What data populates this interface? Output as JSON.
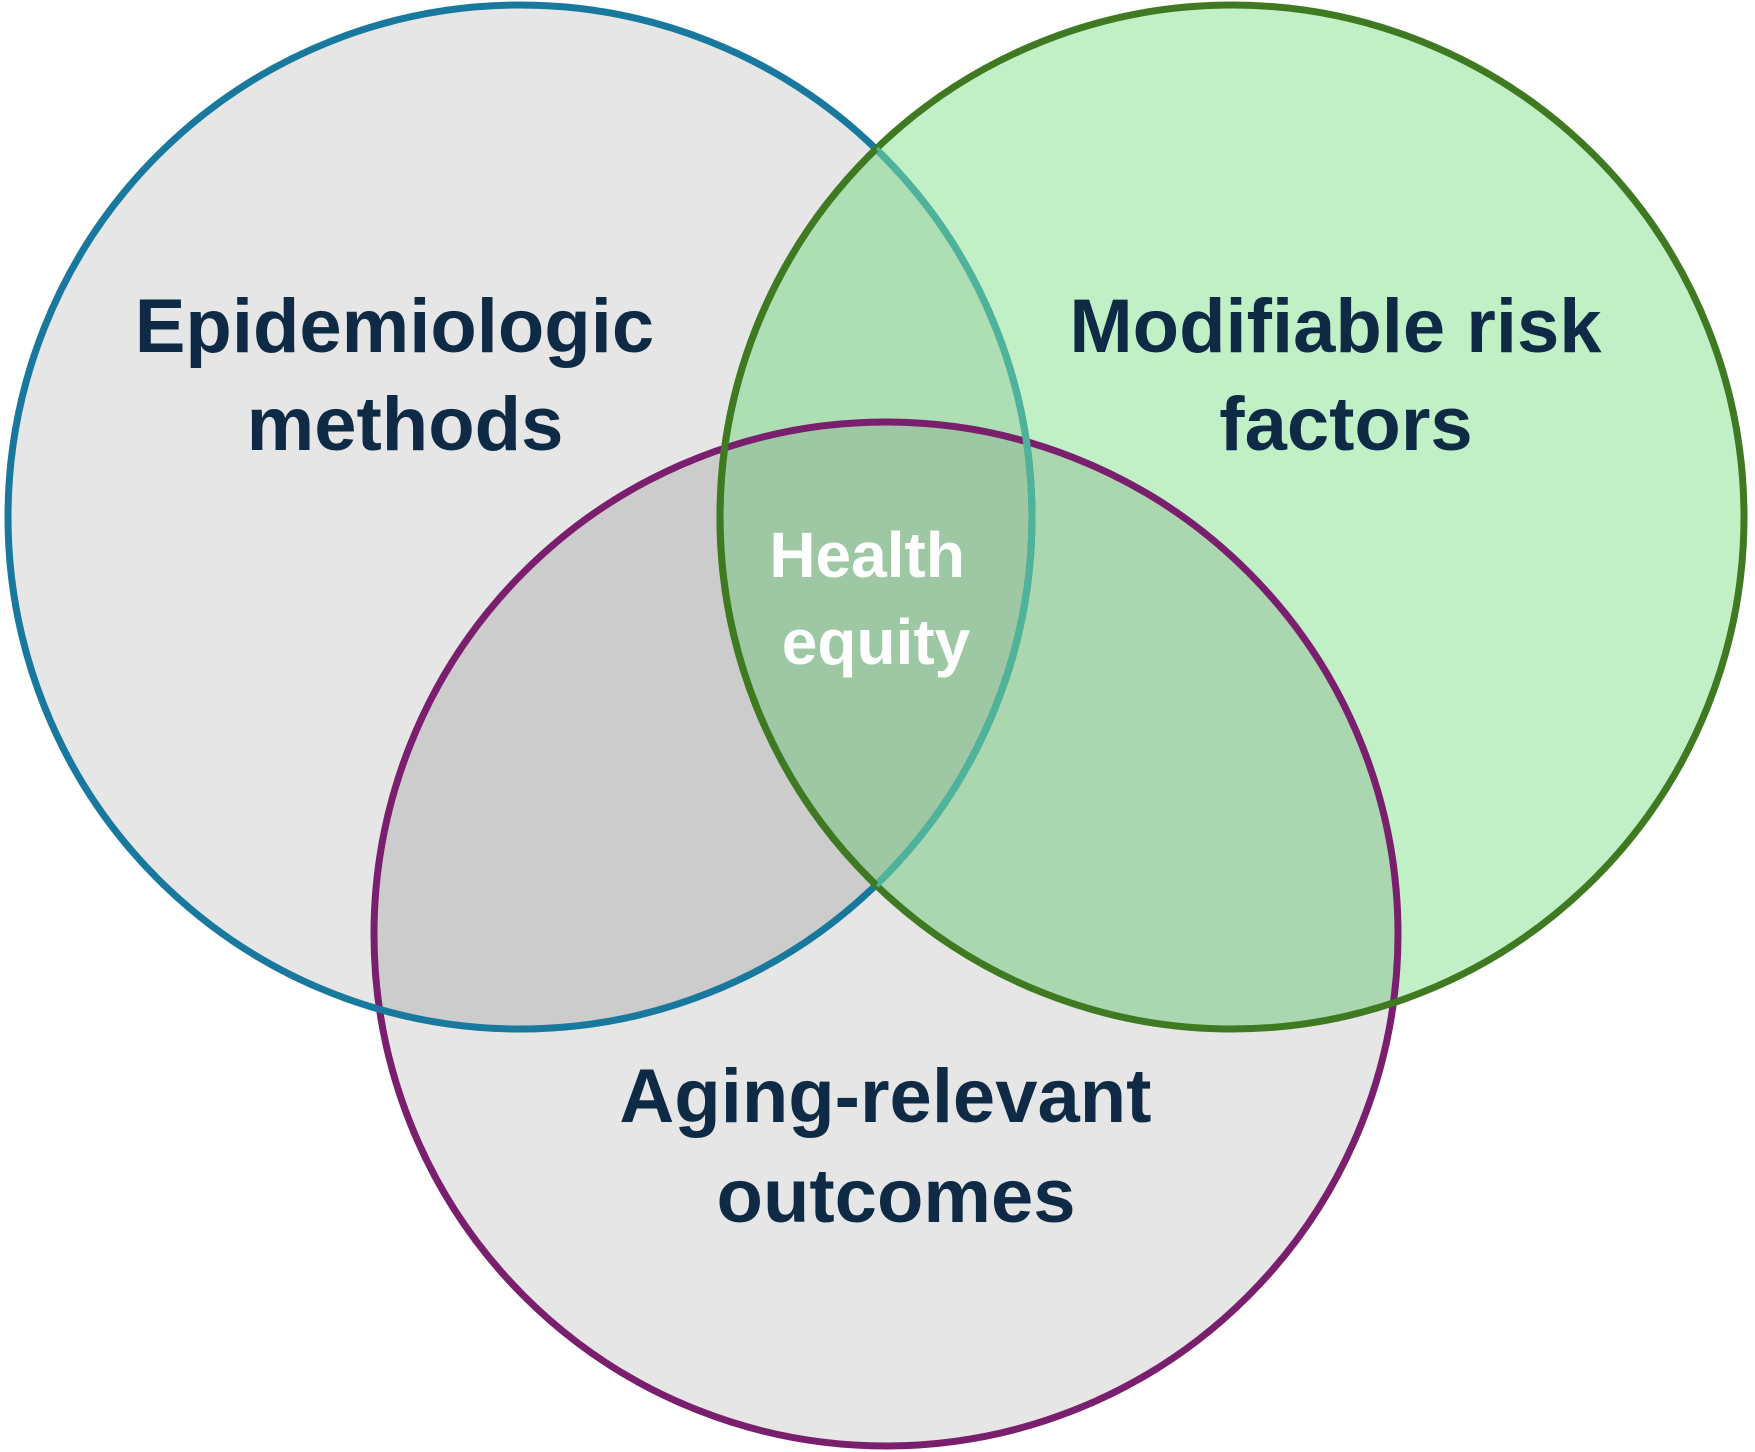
{
  "colors": {
    "set1_fill": "#e6e6e6",
    "set1_stroke": "#19789e",
    "set2_fill": "#c1f0c6",
    "set2_stroke": "#3f7a22",
    "set3_fill": "#e6e6e6",
    "set3_stroke": "#7a1e6e",
    "overlap_12": "#aedeb3",
    "overlap_13": "#cccccc",
    "overlap_23": "#aad6b0",
    "overlap_123": "#9ec8a3",
    "center_label_text": "#ffffff",
    "set_label_text": "#0e2a44",
    "stroke_12_inner": "#4fb39c",
    "stroke_21_inner": "#3f7a22"
  },
  "sets": [
    {
      "id": "epidemiologic",
      "lines": [
        "Epidemiologic",
        "methods"
      ]
    },
    {
      "id": "risk-factors",
      "lines": [
        "Modifiable risk",
        "factors"
      ]
    },
    {
      "id": "aging-outcomes",
      "lines": [
        "Aging-relevant",
        "outcomes"
      ]
    }
  ],
  "center": {
    "lines": [
      "Health",
      "equity"
    ]
  }
}
